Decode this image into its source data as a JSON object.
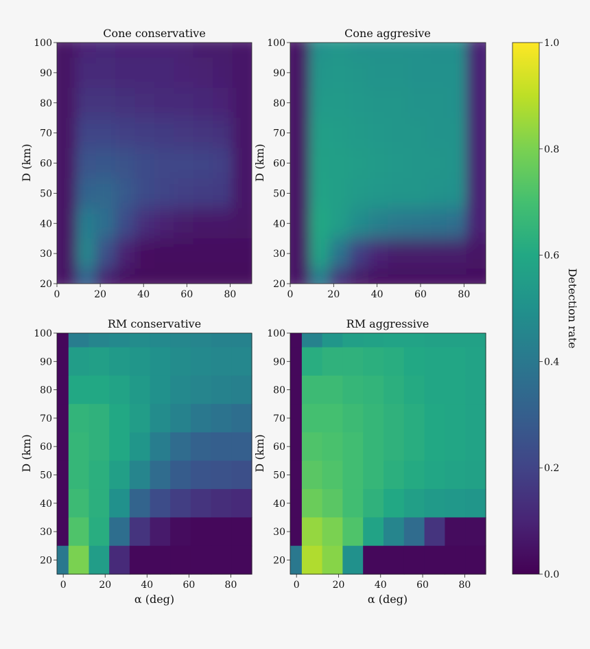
{
  "chart_data": {
    "type": "heatmap",
    "colormap": "viridis",
    "colorbar": {
      "label": "Detection rate",
      "range": [
        0,
        1
      ],
      "ticks": [
        "0.0",
        "0.2",
        "0.4",
        "0.6",
        "0.8",
        "1.0"
      ]
    },
    "panels": [
      {
        "title": "Cone conservative",
        "xlabel": "",
        "ylabel": "D (km)",
        "xlim": [
          0,
          90
        ],
        "ylim": [
          20,
          100
        ],
        "xticks": [
          "0",
          "20",
          "40",
          "60",
          "80"
        ],
        "yticks": [
          "20",
          "30",
          "40",
          "50",
          "60",
          "70",
          "80",
          "90",
          "100"
        ],
        "smooth": true,
        "rows": [
          {
            "D": 100,
            "values": [
              0.05,
              0.1,
              0.11,
              0.1,
              0.1,
              0.1,
              0.09,
              0.07,
              0.07,
              0.06
            ]
          },
          {
            "D": 90,
            "values": [
              0.05,
              0.12,
              0.12,
              0.11,
              0.11,
              0.11,
              0.1,
              0.09,
              0.08,
              0.06
            ]
          },
          {
            "D": 80,
            "values": [
              0.05,
              0.15,
              0.15,
              0.14,
              0.13,
              0.12,
              0.12,
              0.11,
              0.1,
              0.06
            ]
          },
          {
            "D": 70,
            "values": [
              0.05,
              0.2,
              0.2,
              0.19,
              0.18,
              0.17,
              0.16,
              0.15,
              0.14,
              0.06
            ]
          },
          {
            "D": 60,
            "values": [
              0.05,
              0.26,
              0.27,
              0.25,
              0.23,
              0.21,
              0.21,
              0.2,
              0.19,
              0.06
            ]
          },
          {
            "D": 50,
            "values": [
              0.05,
              0.32,
              0.33,
              0.28,
              0.23,
              0.2,
              0.19,
              0.18,
              0.17,
              0.06
            ]
          },
          {
            "D": 40,
            "values": [
              0.05,
              0.42,
              0.36,
              0.23,
              0.13,
              0.09,
              0.07,
              0.06,
              0.06,
              0.05
            ]
          },
          {
            "D": 30,
            "values": [
              0.05,
              0.45,
              0.24,
              0.09,
              0.04,
              0.03,
              0.03,
              0.03,
              0.03,
              0.03
            ]
          },
          {
            "D": 20,
            "values": [
              0.05,
              0.3,
              0.08,
              0.03,
              0.02,
              0.02,
              0.02,
              0.02,
              0.02,
              0.02
            ]
          }
        ]
      },
      {
        "title": "Cone aggresive",
        "xlabel": "",
        "ylabel": "D (km)",
        "xlim": [
          0,
          90
        ],
        "ylim": [
          20,
          100
        ],
        "xticks": [
          "0",
          "20",
          "40",
          "60",
          "80"
        ],
        "yticks": [
          "20",
          "30",
          "40",
          "50",
          "60",
          "70",
          "80",
          "90",
          "100"
        ],
        "smooth": true,
        "rows": [
          {
            "D": 100,
            "values": [
              0.05,
              0.5,
              0.52,
              0.5,
              0.5,
              0.5,
              0.5,
              0.49,
              0.49,
              0.1
            ]
          },
          {
            "D": 90,
            "values": [
              0.05,
              0.52,
              0.53,
              0.52,
              0.51,
              0.51,
              0.5,
              0.5,
              0.5,
              0.1
            ]
          },
          {
            "D": 80,
            "values": [
              0.05,
              0.54,
              0.54,
              0.53,
              0.52,
              0.52,
              0.51,
              0.51,
              0.5,
              0.1
            ]
          },
          {
            "D": 70,
            "values": [
              0.05,
              0.56,
              0.55,
              0.54,
              0.53,
              0.52,
              0.52,
              0.51,
              0.51,
              0.1
            ]
          },
          {
            "D": 60,
            "values": [
              0.05,
              0.57,
              0.56,
              0.55,
              0.54,
              0.53,
              0.52,
              0.52,
              0.51,
              0.1
            ]
          },
          {
            "D": 50,
            "values": [
              0.05,
              0.58,
              0.56,
              0.54,
              0.53,
              0.52,
              0.52,
              0.51,
              0.5,
              0.1
            ]
          },
          {
            "D": 40,
            "values": [
              0.05,
              0.6,
              0.55,
              0.48,
              0.43,
              0.4,
              0.39,
              0.38,
              0.36,
              0.1
            ]
          },
          {
            "D": 30,
            "values": [
              0.05,
              0.58,
              0.38,
              0.18,
              0.1,
              0.07,
              0.07,
              0.07,
              0.07,
              0.05
            ]
          },
          {
            "D": 20,
            "values": [
              0.05,
              0.4,
              0.12,
              0.05,
              0.03,
              0.03,
              0.03,
              0.03,
              0.03,
              0.03
            ]
          }
        ]
      },
      {
        "title": "RM conservative",
        "xlabel": "α (deg)",
        "ylabel": "D (km)",
        "xlim": [
          -3,
          90
        ],
        "ylim": [
          15,
          100
        ],
        "xticks": [
          "0",
          "20",
          "40",
          "60",
          "80"
        ],
        "yticks": [
          "20",
          "30",
          "40",
          "50",
          "60",
          "70",
          "80",
          "90",
          "100"
        ],
        "smooth": false,
        "rows": [
          {
            "D": 100,
            "values": [
              0.02,
              0.42,
              0.45,
              0.47,
              0.48,
              0.47,
              0.46,
              0.45,
              0.44,
              0.44
            ]
          },
          {
            "D": 90,
            "values": [
              0.02,
              0.55,
              0.56,
              0.54,
              0.52,
              0.5,
              0.48,
              0.47,
              0.46,
              0.46
            ]
          },
          {
            "D": 80,
            "values": [
              0.02,
              0.6,
              0.6,
              0.58,
              0.54,
              0.5,
              0.47,
              0.45,
              0.44,
              0.43
            ]
          },
          {
            "D": 70,
            "values": [
              0.02,
              0.65,
              0.64,
              0.6,
              0.55,
              0.48,
              0.44,
              0.4,
              0.38,
              0.36
            ]
          },
          {
            "D": 60,
            "values": [
              0.02,
              0.66,
              0.64,
              0.6,
              0.52,
              0.42,
              0.35,
              0.31,
              0.3,
              0.3
            ]
          },
          {
            "D": 50,
            "values": [
              0.02,
              0.66,
              0.63,
              0.56,
              0.45,
              0.35,
              0.29,
              0.26,
              0.25,
              0.24
            ]
          },
          {
            "D": 40,
            "values": [
              0.02,
              0.68,
              0.63,
              0.5,
              0.32,
              0.23,
              0.18,
              0.15,
              0.13,
              0.12
            ]
          },
          {
            "D": 30,
            "values": [
              0.02,
              0.72,
              0.62,
              0.36,
              0.15,
              0.07,
              0.03,
              0.02,
              0.02,
              0.02
            ]
          },
          {
            "D": 20,
            "values": [
              0.4,
              0.8,
              0.55,
              0.12,
              0.02,
              0.02,
              0.02,
              0.02,
              0.02,
              0.02
            ]
          }
        ]
      },
      {
        "title": "RM aggressive",
        "xlabel": "α (deg)",
        "ylabel": "D (km)",
        "xlim": [
          -3,
          90
        ],
        "ylim": [
          15,
          100
        ],
        "xticks": [
          "0",
          "20",
          "40",
          "60",
          "80"
        ],
        "yticks": [
          "20",
          "30",
          "40",
          "50",
          "60",
          "70",
          "80",
          "90",
          "100"
        ],
        "smooth": false,
        "rows": [
          {
            "D": 100,
            "values": [
              0.02,
              0.44,
              0.52,
              0.56,
              0.57,
              0.58,
              0.58,
              0.57,
              0.57,
              0.57
            ]
          },
          {
            "D": 90,
            "values": [
              0.02,
              0.62,
              0.64,
              0.64,
              0.63,
              0.62,
              0.6,
              0.59,
              0.59,
              0.58
            ]
          },
          {
            "D": 80,
            "values": [
              0.02,
              0.68,
              0.68,
              0.66,
              0.65,
              0.63,
              0.61,
              0.59,
              0.59,
              0.58
            ]
          },
          {
            "D": 70,
            "values": [
              0.02,
              0.7,
              0.7,
              0.68,
              0.66,
              0.64,
              0.62,
              0.6,
              0.59,
              0.58
            ]
          },
          {
            "D": 60,
            "values": [
              0.02,
              0.72,
              0.71,
              0.69,
              0.66,
              0.64,
              0.62,
              0.6,
              0.59,
              0.58
            ]
          },
          {
            "D": 50,
            "values": [
              0.02,
              0.74,
              0.72,
              0.69,
              0.66,
              0.63,
              0.61,
              0.59,
              0.58,
              0.57
            ]
          },
          {
            "D": 40,
            "values": [
              0.02,
              0.77,
              0.74,
              0.69,
              0.64,
              0.6,
              0.56,
              0.54,
              0.53,
              0.52
            ]
          },
          {
            "D": 30,
            "values": [
              0.02,
              0.84,
              0.8,
              0.72,
              0.58,
              0.45,
              0.35,
              0.15,
              0.03,
              0.03
            ]
          },
          {
            "D": 20,
            "values": [
              0.4,
              0.88,
              0.82,
              0.5,
              0.02,
              0.02,
              0.02,
              0.02,
              0.02,
              0.02
            ]
          }
        ]
      }
    ]
  }
}
